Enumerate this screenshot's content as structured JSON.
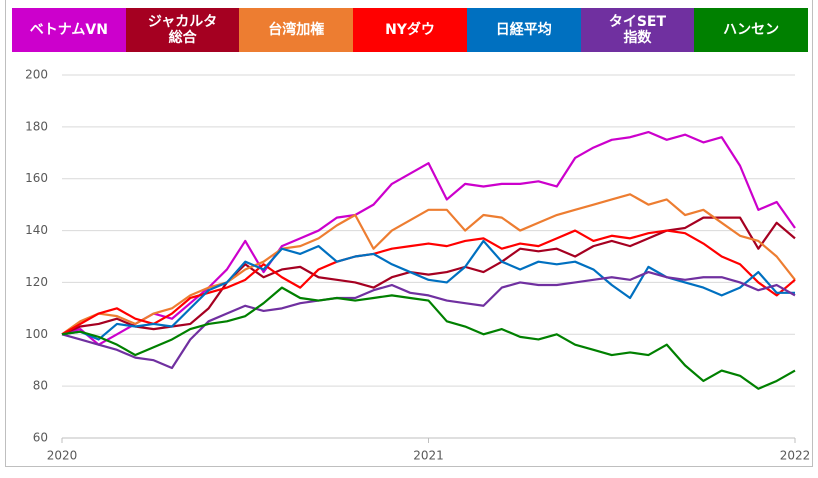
{
  "chart_data": {
    "type": "line",
    "x": [
      2020,
      2020.05,
      2020.1,
      2020.15,
      2020.2,
      2020.25,
      2020.3,
      2020.35,
      2020.4,
      2020.45,
      2020.5,
      2020.55,
      2020.6,
      2020.65,
      2020.7,
      2020.75,
      2020.8,
      2020.85,
      2020.9,
      2020.95,
      2021,
      2021.05,
      2021.1,
      2021.15,
      2021.2,
      2021.25,
      2021.3,
      2021.35,
      2021.4,
      2021.45,
      2021.5,
      2021.55,
      2021.6,
      2021.65,
      2021.7,
      2021.75,
      2021.8,
      2021.85,
      2021.9,
      2021.95,
      2022
    ],
    "xlim": [
      2020,
      2022
    ],
    "xticks": [
      2020,
      2021,
      2022
    ],
    "ylim": [
      60,
      200
    ],
    "yticks": [
      60,
      80,
      100,
      120,
      140,
      160,
      180,
      200
    ],
    "grid": true,
    "series": [
      {
        "name": "ベトナムVN",
        "color": "#cc00cc",
        "values": [
          100,
          102,
          96,
          100,
          104,
          108,
          106,
          112,
          118,
          125,
          136,
          124,
          134,
          137,
          140,
          145,
          146,
          150,
          158,
          162,
          166,
          152,
          158,
          157,
          158,
          158,
          159,
          157,
          168,
          172,
          175,
          176,
          178,
          175,
          177,
          174,
          176,
          165,
          148,
          151,
          141
        ]
      },
      {
        "name": "ジャカルタ\n総合",
        "color": "#a50021",
        "values": [
          100,
          103,
          104,
          106,
          103,
          102,
          103,
          104,
          110,
          120,
          127,
          122,
          125,
          126,
          122,
          121,
          120,
          118,
          122,
          124,
          123,
          124,
          126,
          124,
          128,
          133,
          132,
          133,
          130,
          134,
          136,
          134,
          137,
          140,
          141,
          145,
          145,
          145,
          133,
          143,
          137
        ]
      },
      {
        "name": "台湾加権",
        "color": "#ed7d31",
        "values": [
          100,
          105,
          108,
          107,
          104,
          108,
          110,
          115,
          118,
          120,
          125,
          128,
          133,
          134,
          137,
          142,
          146,
          133,
          140,
          144,
          148,
          148,
          140,
          146,
          145,
          140,
          143,
          146,
          148,
          150,
          152,
          154,
          150,
          152,
          146,
          148,
          143,
          138,
          136,
          130,
          121
        ]
      },
      {
        "name": "NYダウ",
        "color": "#ff0000",
        "values": [
          100,
          104,
          108,
          110,
          106,
          104,
          108,
          114,
          116,
          118,
          121,
          127,
          122,
          118,
          125,
          128,
          130,
          131,
          133,
          134,
          135,
          134,
          136,
          137,
          133,
          135,
          134,
          137,
          140,
          136,
          138,
          137,
          139,
          140,
          139,
          135,
          130,
          127,
          120,
          115,
          121
        ]
      },
      {
        "name": "日経平均",
        "color": "#0070c0",
        "values": [
          100,
          101,
          98,
          104,
          103,
          104,
          103,
          110,
          117,
          120,
          128,
          125,
          133,
          131,
          134,
          128,
          130,
          131,
          127,
          124,
          121,
          120,
          126,
          136,
          128,
          125,
          128,
          127,
          128,
          125,
          119,
          114,
          126,
          122,
          120,
          118,
          115,
          118,
          124,
          116,
          116
        ]
      },
      {
        "name": "タイSET\n指数",
        "color": "#7030a0",
        "values": [
          100,
          98,
          96,
          94,
          91,
          90,
          87,
          98,
          105,
          108,
          111,
          109,
          110,
          112,
          113,
          114,
          114,
          117,
          119,
          116,
          115,
          113,
          112,
          111,
          118,
          120,
          119,
          119,
          120,
          121,
          122,
          121,
          124,
          122,
          121,
          122,
          122,
          120,
          117,
          119,
          115
        ]
      },
      {
        "name": "ハンセン",
        "color": "#008000",
        "values": [
          100,
          101,
          99,
          96,
          92,
          95,
          98,
          102,
          104,
          105,
          107,
          112,
          118,
          114,
          113,
          114,
          113,
          114,
          115,
          114,
          113,
          105,
          103,
          100,
          102,
          99,
          98,
          100,
          96,
          94,
          92,
          93,
          92,
          96,
          88,
          82,
          86,
          84,
          79,
          82,
          86
        ]
      }
    ]
  }
}
